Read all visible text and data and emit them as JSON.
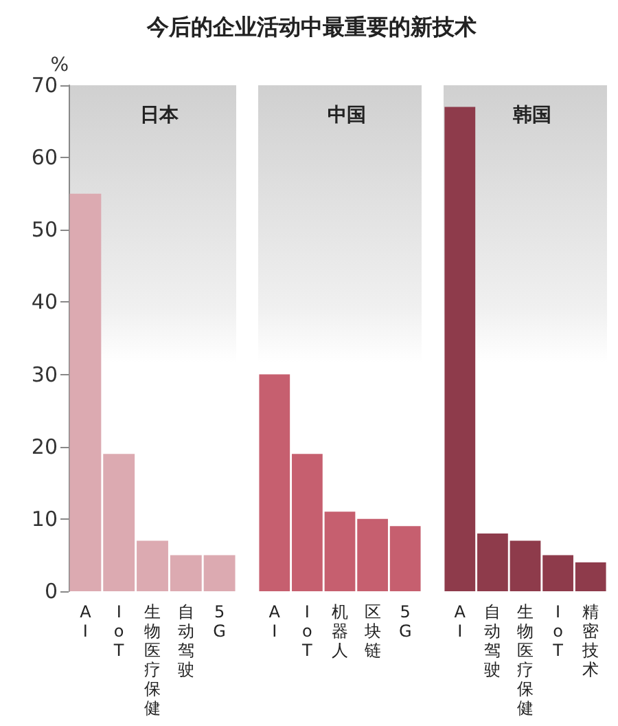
{
  "chart_data": [
    {
      "type": "bar",
      "title": "今后的企业活动中最重要的新技术",
      "subtitle": "日本",
      "ylabel": "%",
      "categories": [
        "AI",
        "IoT",
        "生物医疗保健",
        "自动驾驶",
        "5G"
      ],
      "values": [
        55,
        19,
        7,
        5,
        5
      ],
      "color": "#dcaab1",
      "ylim": [
        0,
        70
      ],
      "yticks": [
        0,
        10,
        20,
        30,
        40,
        50,
        60,
        70
      ]
    },
    {
      "type": "bar",
      "subtitle": "中国",
      "categories": [
        "AI",
        "IoT",
        "机器人",
        "区块链",
        "5G"
      ],
      "values": [
        30,
        19,
        11,
        10,
        9
      ],
      "color": "#c65f6f",
      "ylim": [
        0,
        70
      ],
      "tick_labels": "x"
    },
    {
      "type": "bar",
      "subtitle": "韩国",
      "categories": [
        "AI",
        "自动驾驶",
        "生物医疗保健",
        "IoT",
        "精密技术"
      ],
      "values": [
        67,
        8,
        7,
        5,
        4
      ],
      "color": "#8e3b4b",
      "ylim": [
        0,
        70
      ],
      "tick_labels": "x"
    }
  ]
}
